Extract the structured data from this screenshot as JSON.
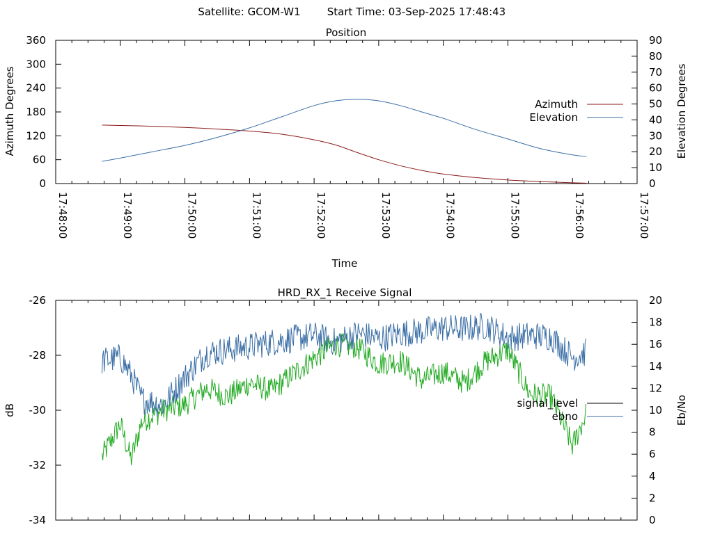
{
  "header": {
    "satellite_label": "Satellite: GCOM-W1",
    "start_label": "Start Time: 03-Sep-2025 17:48:43"
  },
  "colors": {
    "azimuth": "#8b1a1a",
    "elevation": "#3a6ea5",
    "signal_level": "#22aa22",
    "ebno": "#3a6ea5",
    "signal_legend_swatch": "#000000"
  },
  "chart_data": [
    {
      "type": "line",
      "title": "Position",
      "xlabel": "Time",
      "ylabel": "Azimuth Degrees",
      "y2label": "Elevation Degrees",
      "xlim": [
        "17:48:00",
        "17:57:00"
      ],
      "ylim": [
        0,
        360
      ],
      "y2lim": [
        0,
        90
      ],
      "x_ticks": [
        "17:48:00",
        "17:49:00",
        "17:50:00",
        "17:51:00",
        "17:52:00",
        "17:53:00",
        "17:54:00",
        "17:55:00",
        "17:56:00",
        "17:57:00"
      ],
      "y_ticks": [
        "0",
        "60",
        "120",
        "180",
        "240",
        "300",
        "360"
      ],
      "y2_ticks": [
        "0",
        "10",
        "20",
        "30",
        "40",
        "50",
        "60",
        "70",
        "80",
        "90"
      ],
      "legend_position": "right",
      "series": [
        {
          "name": "Azimuth",
          "axis": "y",
          "x": [
            "17:48:43",
            "17:49:00",
            "17:49:30",
            "17:50:00",
            "17:50:30",
            "17:51:00",
            "17:51:30",
            "17:52:00",
            "17:52:20",
            "17:52:40",
            "17:53:00",
            "17:53:20",
            "17:53:40",
            "17:54:00",
            "17:54:30",
            "17:55:00",
            "17:55:30",
            "17:56:00",
            "17:56:13"
          ],
          "y": [
            147,
            146,
            144,
            141,
            137,
            132,
            124,
            110,
            97,
            78,
            60,
            45,
            33,
            24,
            15,
            9,
            5,
            2,
            1
          ]
        },
        {
          "name": "Elevation",
          "axis": "y2",
          "x": [
            "17:48:43",
            "17:49:00",
            "17:49:30",
            "17:50:00",
            "17:50:30",
            "17:51:00",
            "17:51:30",
            "17:52:00",
            "17:52:20",
            "17:52:40",
            "17:53:00",
            "17:53:20",
            "17:53:40",
            "17:54:00",
            "17:54:30",
            "17:55:00",
            "17:55:30",
            "17:56:00",
            "17:56:13"
          ],
          "y": [
            14,
            16,
            20,
            24,
            29,
            35,
            42,
            49,
            52,
            53,
            52,
            49,
            45,
            41,
            34,
            28,
            22,
            18,
            17
          ]
        }
      ]
    },
    {
      "type": "line",
      "title": "HRD_RX_1 Receive Signal",
      "xlabel": "",
      "ylabel": "dB",
      "y2label": "Eb/No",
      "xlim": [
        "17:48:00",
        "17:57:00"
      ],
      "ylim": [
        -34,
        -26
      ],
      "y2lim": [
        0,
        20
      ],
      "y_ticks": [
        "-26",
        "-28",
        "-30",
        "-32",
        "-34"
      ],
      "y2_ticks": [
        "0",
        "2",
        "4",
        "6",
        "8",
        "10",
        "12",
        "14",
        "16",
        "18",
        "20"
      ],
      "legend_position": "right",
      "series": [
        {
          "name": "signal_level",
          "axis": "y",
          "x": [
            "17:48:43",
            "17:49:00",
            "17:49:10",
            "17:49:20",
            "17:49:40",
            "17:50:00",
            "17:50:20",
            "17:50:40",
            "17:51:00",
            "17:51:20",
            "17:51:40",
            "17:52:00",
            "17:52:20",
            "17:52:40",
            "17:53:00",
            "17:53:20",
            "17:53:40",
            "17:54:00",
            "17:54:20",
            "17:54:40",
            "17:55:00",
            "17:55:20",
            "17:55:40",
            "17:56:00",
            "17:56:13"
          ],
          "y": [
            -31.7,
            -30.5,
            -31.8,
            -30.4,
            -30.0,
            -29.8,
            -29.2,
            -29.5,
            -29.0,
            -29.3,
            -28.7,
            -28.1,
            -27.6,
            -27.7,
            -28.3,
            -28.2,
            -28.9,
            -28.6,
            -29.0,
            -28.2,
            -27.8,
            -29.4,
            -29.5,
            -31.3,
            -30.1
          ]
        },
        {
          "name": "ebno",
          "axis": "y2",
          "x": [
            "17:48:43",
            "17:49:00",
            "17:49:10",
            "17:49:20",
            "17:49:40",
            "17:50:00",
            "17:50:20",
            "17:50:40",
            "17:51:00",
            "17:51:20",
            "17:51:40",
            "17:52:00",
            "17:52:20",
            "17:52:40",
            "17:53:00",
            "17:53:20",
            "17:53:40",
            "17:54:00",
            "17:54:20",
            "17:54:40",
            "17:55:00",
            "17:55:20",
            "17:55:40",
            "17:56:00",
            "17:56:13"
          ],
          "y": [
            14.5,
            14.8,
            13.2,
            11.0,
            10.5,
            13.0,
            15.2,
            15.5,
            15.8,
            16.2,
            16.5,
            16.8,
            16.2,
            17.0,
            16.5,
            17.0,
            17.2,
            17.5,
            17.4,
            17.7,
            16.6,
            16.8,
            16.7,
            14.8,
            15.3
          ]
        }
      ]
    }
  ]
}
